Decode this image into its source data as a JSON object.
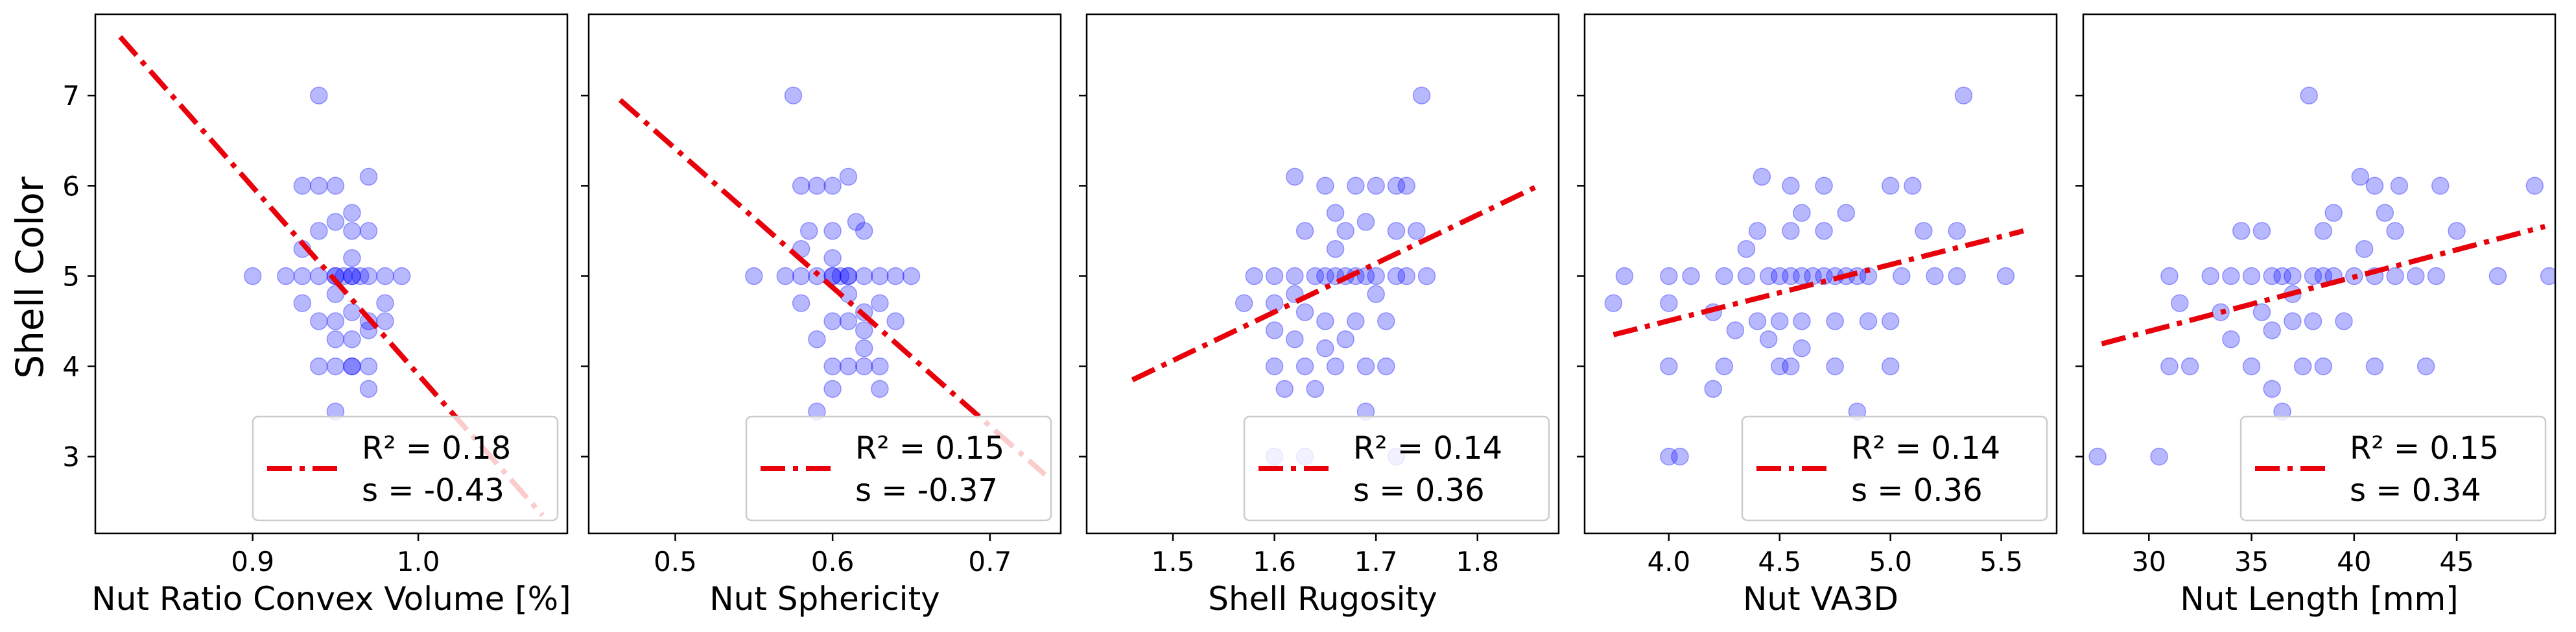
{
  "figure": {
    "ylabel": "Shell Color"
  },
  "colors": {
    "points": "#0000ff",
    "fit_line": "#e8000b",
    "legend_border": "#cccccc"
  },
  "chart_data": [
    {
      "type": "scatter",
      "xlabel": "Nut Ratio Convex Volume [%]",
      "ylabel": "Shell Color",
      "xlim": [
        0.805,
        1.09
      ],
      "ylim": [
        2.15,
        7.9
      ],
      "xticks": [
        0.9,
        1.0
      ],
      "xtick_labels": [
        "0.9",
        "1.0"
      ],
      "yticks": [
        3,
        4,
        5,
        6,
        7
      ],
      "ytick_labels": [
        "3",
        "4",
        "5",
        "6",
        "7"
      ],
      "fit_line": {
        "x": [
          0.82,
          1.075
        ],
        "y": [
          7.65,
          2.35
        ]
      },
      "legend": {
        "r2_label": "R² = 0.18",
        "s_label": "s   = -0.43",
        "position": "lower right"
      },
      "points": [
        [
          0.94,
          7.0
        ],
        [
          0.93,
          6.0
        ],
        [
          0.94,
          6.0
        ],
        [
          0.95,
          6.0
        ],
        [
          0.97,
          6.1
        ],
        [
          0.94,
          5.5
        ],
        [
          0.95,
          5.6
        ],
        [
          0.96,
          5.7
        ],
        [
          0.97,
          5.5
        ],
        [
          0.96,
          5.5
        ],
        [
          0.9,
          5.0
        ],
        [
          0.92,
          5.0
        ],
        [
          0.93,
          5.0
        ],
        [
          0.94,
          5.0
        ],
        [
          0.95,
          5.0
        ],
        [
          0.955,
          5.0
        ],
        [
          0.96,
          5.0
        ],
        [
          0.965,
          5.0
        ],
        [
          0.97,
          5.0
        ],
        [
          0.98,
          5.0
        ],
        [
          0.99,
          5.0
        ],
        [
          0.93,
          4.7
        ],
        [
          0.94,
          4.5
        ],
        [
          0.95,
          4.5
        ],
        [
          0.96,
          4.6
        ],
        [
          0.97,
          4.5
        ],
        [
          0.98,
          4.7
        ],
        [
          0.95,
          4.3
        ],
        [
          0.96,
          4.3
        ],
        [
          0.94,
          4.0
        ],
        [
          0.95,
          4.0
        ],
        [
          0.96,
          4.0
        ],
        [
          0.97,
          4.0
        ],
        [
          0.97,
          3.75
        ],
        [
          0.95,
          3.5
        ],
        [
          0.96,
          5.2
        ],
        [
          0.95,
          4.8
        ],
        [
          0.97,
          4.4
        ],
        [
          0.93,
          5.3
        ],
        [
          0.98,
          4.5
        ],
        [
          0.96,
          4.0
        ],
        [
          0.95,
          5.0
        ],
        [
          0.96,
          5.0
        ]
      ]
    },
    {
      "type": "scatter",
      "xlabel": "Nut Sphericity",
      "ylabel": "",
      "xlim": [
        0.445,
        0.745
      ],
      "ylim": [
        2.15,
        7.9
      ],
      "xticks": [
        0.5,
        0.6,
        0.7
      ],
      "xtick_labels": [
        "0.5",
        "0.6",
        "0.7"
      ],
      "yticks": [
        3,
        4,
        5,
        6,
        7
      ],
      "ytick_labels": [],
      "fit_line": {
        "x": [
          0.465,
          0.735
        ],
        "y": [
          6.95,
          2.8
        ]
      },
      "legend": {
        "r2_label": "R² = 0.15",
        "s_label": "s   = -0.37",
        "position": "lower right"
      },
      "points": [
        [
          0.575,
          7.0
        ],
        [
          0.58,
          6.0
        ],
        [
          0.59,
          6.0
        ],
        [
          0.6,
          6.0
        ],
        [
          0.61,
          6.1
        ],
        [
          0.585,
          5.5
        ],
        [
          0.6,
          5.5
        ],
        [
          0.615,
          5.6
        ],
        [
          0.62,
          5.5
        ],
        [
          0.55,
          5.0
        ],
        [
          0.57,
          5.0
        ],
        [
          0.58,
          5.0
        ],
        [
          0.59,
          5.0
        ],
        [
          0.6,
          5.0
        ],
        [
          0.605,
          5.0
        ],
        [
          0.61,
          5.0
        ],
        [
          0.62,
          5.0
        ],
        [
          0.63,
          5.0
        ],
        [
          0.64,
          5.0
        ],
        [
          0.65,
          5.0
        ],
        [
          0.58,
          4.7
        ],
        [
          0.6,
          4.5
        ],
        [
          0.61,
          4.5
        ],
        [
          0.62,
          4.6
        ],
        [
          0.63,
          4.7
        ],
        [
          0.64,
          4.5
        ],
        [
          0.59,
          4.3
        ],
        [
          0.6,
          4.0
        ],
        [
          0.61,
          4.0
        ],
        [
          0.62,
          4.0
        ],
        [
          0.63,
          4.0
        ],
        [
          0.6,
          3.75
        ],
        [
          0.63,
          3.75
        ],
        [
          0.59,
          3.5
        ],
        [
          0.6,
          5.2
        ],
        [
          0.61,
          4.8
        ],
        [
          0.62,
          4.4
        ],
        [
          0.58,
          5.3
        ],
        [
          0.62,
          4.2
        ],
        [
          0.6,
          5.0
        ],
        [
          0.61,
          5.0
        ]
      ]
    },
    {
      "type": "scatter",
      "xlabel": "Shell Rugosity",
      "ylabel": "",
      "xlim": [
        1.415,
        1.88
      ],
      "ylim": [
        2.15,
        7.9
      ],
      "xticks": [
        1.5,
        1.6,
        1.7,
        1.8
      ],
      "xtick_labels": [
        "1.5",
        "1.6",
        "1.7",
        "1.8"
      ],
      "yticks": [
        3,
        4,
        5,
        6,
        7
      ],
      "ytick_labels": [],
      "fit_line": {
        "x": [
          1.46,
          1.86
        ],
        "y": [
          3.85,
          6.0
        ]
      },
      "legend": {
        "r2_label": "R² = 0.14",
        "s_label": "s   = 0.36",
        "position": "lower right"
      },
      "points": [
        [
          1.745,
          7.0
        ],
        [
          1.62,
          6.1
        ],
        [
          1.65,
          6.0
        ],
        [
          1.68,
          6.0
        ],
        [
          1.7,
          6.0
        ],
        [
          1.72,
          6.0
        ],
        [
          1.73,
          6.0
        ],
        [
          1.66,
          5.7
        ],
        [
          1.69,
          5.6
        ],
        [
          1.63,
          5.5
        ],
        [
          1.67,
          5.5
        ],
        [
          1.72,
          5.5
        ],
        [
          1.74,
          5.5
        ],
        [
          1.58,
          5.0
        ],
        [
          1.6,
          5.0
        ],
        [
          1.62,
          5.0
        ],
        [
          1.64,
          5.0
        ],
        [
          1.65,
          5.0
        ],
        [
          1.66,
          5.0
        ],
        [
          1.67,
          5.0
        ],
        [
          1.68,
          5.0
        ],
        [
          1.69,
          5.0
        ],
        [
          1.7,
          5.0
        ],
        [
          1.72,
          5.0
        ],
        [
          1.73,
          5.0
        ],
        [
          1.75,
          5.0
        ],
        [
          1.57,
          4.7
        ],
        [
          1.6,
          4.7
        ],
        [
          1.63,
          4.6
        ],
        [
          1.65,
          4.5
        ],
        [
          1.68,
          4.5
        ],
        [
          1.71,
          4.5
        ],
        [
          1.6,
          4.4
        ],
        [
          1.62,
          4.3
        ],
        [
          1.65,
          4.2
        ],
        [
          1.67,
          4.3
        ],
        [
          1.6,
          4.0
        ],
        [
          1.63,
          4.0
        ],
        [
          1.66,
          4.0
        ],
        [
          1.69,
          4.0
        ],
        [
          1.71,
          4.0
        ],
        [
          1.61,
          3.75
        ],
        [
          1.64,
          3.75
        ],
        [
          1.69,
          3.5
        ],
        [
          1.6,
          3.0
        ],
        [
          1.72,
          3.0
        ],
        [
          1.63,
          3.0
        ],
        [
          1.66,
          5.3
        ],
        [
          1.7,
          4.8
        ],
        [
          1.62,
          4.8
        ]
      ]
    },
    {
      "type": "scatter",
      "xlabel": "Nut VA3D",
      "ylabel": "",
      "xlim": [
        3.62,
        5.75
      ],
      "ylim": [
        2.15,
        7.9
      ],
      "xticks": [
        4.0,
        4.5,
        5.0,
        5.5
      ],
      "xtick_labels": [
        "4.0",
        "4.5",
        "5.0",
        "5.5"
      ],
      "yticks": [
        3,
        4,
        5,
        6,
        7
      ],
      "ytick_labels": [],
      "fit_line": {
        "x": [
          3.75,
          5.6
        ],
        "y": [
          4.35,
          5.5
        ]
      },
      "legend": {
        "r2_label": "R² = 0.14",
        "s_label": "s   = 0.36",
        "position": "lower right"
      },
      "points": [
        [
          5.33,
          7.0
        ],
        [
          4.42,
          6.1
        ],
        [
          4.55,
          6.0
        ],
        [
          4.7,
          6.0
        ],
        [
          5.0,
          6.0
        ],
        [
          5.1,
          6.0
        ],
        [
          4.6,
          5.7
        ],
        [
          4.8,
          5.7
        ],
        [
          4.4,
          5.5
        ],
        [
          4.55,
          5.5
        ],
        [
          4.7,
          5.5
        ],
        [
          5.15,
          5.5
        ],
        [
          5.3,
          5.5
        ],
        [
          3.8,
          5.0
        ],
        [
          4.0,
          5.0
        ],
        [
          4.1,
          5.0
        ],
        [
          4.25,
          5.0
        ],
        [
          4.35,
          5.0
        ],
        [
          4.45,
          5.0
        ],
        [
          4.5,
          5.0
        ],
        [
          4.55,
          5.0
        ],
        [
          4.6,
          5.0
        ],
        [
          4.65,
          5.0
        ],
        [
          4.7,
          5.0
        ],
        [
          4.75,
          5.0
        ],
        [
          4.8,
          5.0
        ],
        [
          4.85,
          5.0
        ],
        [
          4.9,
          5.0
        ],
        [
          5.05,
          5.0
        ],
        [
          5.2,
          5.0
        ],
        [
          5.3,
          5.0
        ],
        [
          3.75,
          4.7
        ],
        [
          4.0,
          4.7
        ],
        [
          4.2,
          4.6
        ],
        [
          4.4,
          4.5
        ],
        [
          4.5,
          4.5
        ],
        [
          4.6,
          4.5
        ],
        [
          4.75,
          4.5
        ],
        [
          4.9,
          4.5
        ],
        [
          5.0,
          4.5
        ],
        [
          4.3,
          4.4
        ],
        [
          4.45,
          4.3
        ],
        [
          4.6,
          4.2
        ],
        [
          4.0,
          4.0
        ],
        [
          4.25,
          4.0
        ],
        [
          4.5,
          4.0
        ],
        [
          4.55,
          4.0
        ],
        [
          4.75,
          4.0
        ],
        [
          5.0,
          4.0
        ],
        [
          4.2,
          3.75
        ],
        [
          4.85,
          3.5
        ],
        [
          4.05,
          3.0
        ],
        [
          4.0,
          3.0
        ],
        [
          5.52,
          5.0
        ],
        [
          4.35,
          5.3
        ]
      ]
    },
    {
      "type": "scatter",
      "xlabel": "Nut Length [mm]",
      "ylabel": "",
      "xlim": [
        26.8,
        49.8
      ],
      "ylim": [
        2.15,
        7.9
      ],
      "xticks": [
        30,
        35,
        40,
        45
      ],
      "xtick_labels": [
        "30",
        "35",
        "40",
        "45"
      ],
      "yticks": [
        3,
        4,
        5,
        6,
        7
      ],
      "ytick_labels": [],
      "fit_line": {
        "x": [
          27.7,
          49.3
        ],
        "y": [
          4.25,
          5.55
        ]
      },
      "legend": {
        "r2_label": "R² = 0.15",
        "s_label": "s   = 0.34",
        "position": "lower right"
      },
      "points": [
        [
          37.8,
          7.0
        ],
        [
          40.3,
          6.1
        ],
        [
          41.0,
          6.0
        ],
        [
          42.2,
          6.0
        ],
        [
          44.2,
          6.0
        ],
        [
          48.8,
          6.0
        ],
        [
          39.0,
          5.7
        ],
        [
          41.5,
          5.7
        ],
        [
          34.5,
          5.5
        ],
        [
          35.5,
          5.5
        ],
        [
          38.5,
          5.5
        ],
        [
          42.0,
          5.5
        ],
        [
          45.0,
          5.5
        ],
        [
          31.0,
          5.0
        ],
        [
          33.0,
          5.0
        ],
        [
          34.0,
          5.0
        ],
        [
          35.0,
          5.0
        ],
        [
          36.0,
          5.0
        ],
        [
          36.5,
          5.0
        ],
        [
          37.0,
          5.0
        ],
        [
          38.0,
          5.0
        ],
        [
          38.5,
          5.0
        ],
        [
          39.0,
          5.0
        ],
        [
          40.0,
          5.0
        ],
        [
          41.0,
          5.0
        ],
        [
          42.0,
          5.0
        ],
        [
          43.0,
          5.0
        ],
        [
          44.0,
          5.0
        ],
        [
          47.0,
          5.0
        ],
        [
          49.5,
          5.0
        ],
        [
          31.5,
          4.7
        ],
        [
          33.5,
          4.6
        ],
        [
          35.5,
          4.6
        ],
        [
          37.0,
          4.5
        ],
        [
          38.0,
          4.5
        ],
        [
          39.5,
          4.5
        ],
        [
          36.0,
          4.4
        ],
        [
          34.0,
          4.3
        ],
        [
          31.0,
          4.0
        ],
        [
          32.0,
          4.0
        ],
        [
          35.0,
          4.0
        ],
        [
          37.5,
          4.0
        ],
        [
          38.5,
          4.0
        ],
        [
          41.0,
          4.0
        ],
        [
          43.5,
          4.0
        ],
        [
          36.0,
          3.75
        ],
        [
          36.5,
          3.5
        ],
        [
          27.5,
          3.0
        ],
        [
          30.5,
          3.0
        ],
        [
          40.5,
          5.3
        ],
        [
          37.0,
          4.8
        ]
      ]
    }
  ]
}
